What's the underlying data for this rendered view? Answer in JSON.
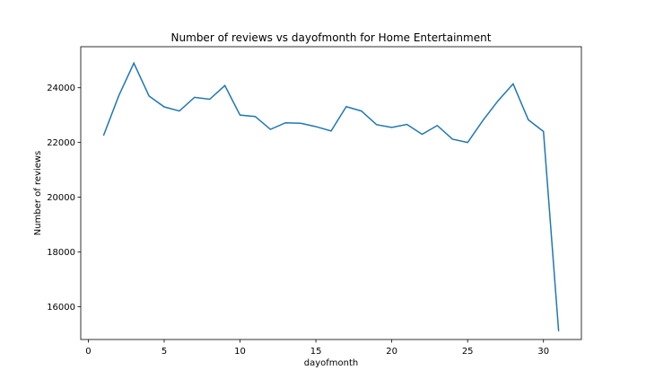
{
  "chart_data": {
    "type": "line",
    "title": "Number of reviews vs dayofmonth for Home Entertainment",
    "xlabel": "dayofmonth",
    "ylabel": "Number of reviews",
    "xlim": [
      -0.5,
      32.5
    ],
    "ylim": [
      14800,
      25500
    ],
    "xticks": [
      0,
      5,
      10,
      15,
      20,
      25,
      30
    ],
    "yticks": [
      16000,
      18000,
      20000,
      22000,
      24000
    ],
    "grid": false,
    "color": "#1f77b4",
    "x": [
      1,
      2,
      3,
      4,
      5,
      6,
      7,
      8,
      9,
      10,
      11,
      12,
      13,
      14,
      15,
      16,
      17,
      18,
      19,
      20,
      21,
      22,
      23,
      24,
      25,
      26,
      27,
      28,
      29,
      30,
      31
    ],
    "y": [
      22250,
      23700,
      24900,
      23700,
      23300,
      23150,
      23650,
      23580,
      24080,
      23000,
      22950,
      22480,
      22720,
      22700,
      22580,
      22420,
      23310,
      23150,
      22650,
      22550,
      22660,
      22300,
      22620,
      22120,
      22000,
      22800,
      23520,
      24140,
      22830,
      22400,
      15100
    ]
  }
}
